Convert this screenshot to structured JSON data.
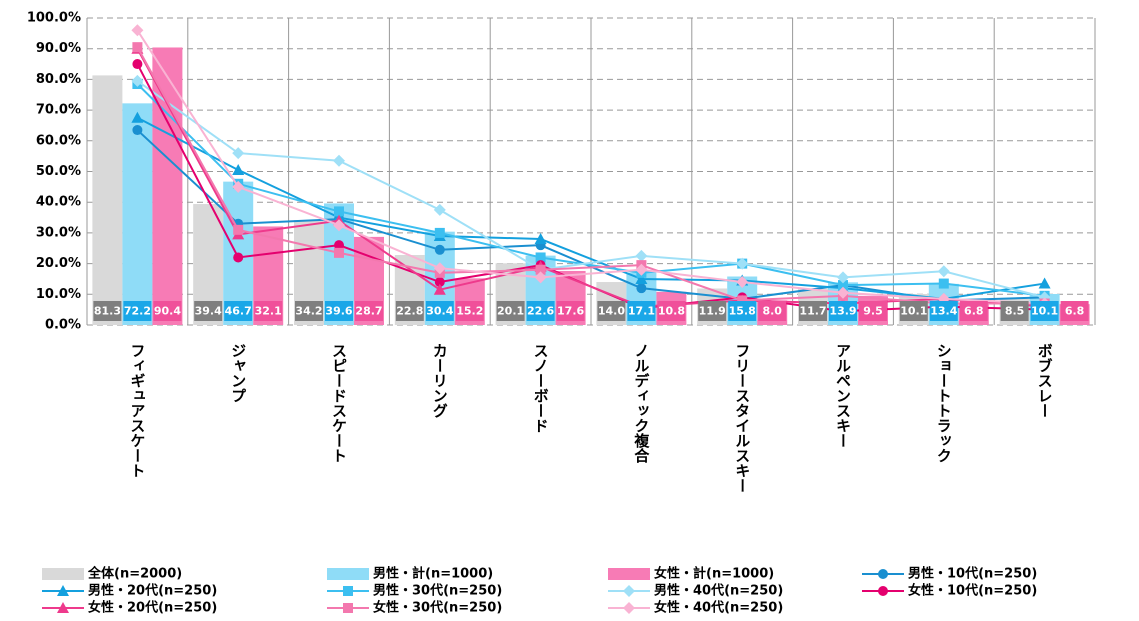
{
  "chart_data": {
    "type": "combo",
    "categories": [
      "フィギュアスケート",
      "ジャンプ",
      "スピードスケート",
      "カーリング",
      "スノーボード",
      "ノルディック複合",
      "フリースタイルスキー",
      "アルペンスキー",
      "ショートトラック",
      "ボブスレー"
    ],
    "ylim": [
      0,
      100
    ],
    "yticks": [
      {
        "value": 0,
        "label": "0.0%"
      },
      {
        "value": 10,
        "label": "10.0%"
      },
      {
        "value": 20,
        "label": "20.0%"
      },
      {
        "value": 30,
        "label": "30.0%"
      },
      {
        "value": 40,
        "label": "40.0%"
      },
      {
        "value": 50,
        "label": "50.0%"
      },
      {
        "value": 60,
        "label": "60.0%"
      },
      {
        "value": 70,
        "label": "70.0%"
      },
      {
        "value": 80,
        "label": "80.0%"
      },
      {
        "value": 90,
        "label": "90.0%"
      },
      {
        "value": 100,
        "label": "100.0%"
      }
    ],
    "grid": true,
    "series": [
      {
        "name": "全体(n=2000)",
        "kind": "bar",
        "color": "#d9d9d9",
        "label_color": "#7f7f7f",
        "values": [
          81.3,
          39.4,
          34.2,
          22.8,
          20.1,
          14.0,
          11.9,
          11.7,
          10.1,
          8.5
        ],
        "value_labels": [
          "81.3",
          "39.4",
          "34.2",
          "22.8",
          "20.1",
          "14.0",
          "11.9",
          "11.7",
          "10.1",
          "8.5"
        ]
      },
      {
        "name": "男性・計(n=1000)",
        "kind": "bar",
        "color": "#8fdcf7",
        "label_color": "#1aa7e8",
        "values": [
          72.2,
          46.7,
          39.6,
          30.4,
          22.6,
          17.1,
          15.8,
          13.9,
          13.4,
          10.1
        ],
        "value_labels": [
          "72.2",
          "46.7",
          "39.6",
          "30.4",
          "22.6",
          "17.1",
          "15.8",
          "13.9",
          "13.4",
          "10.1"
        ]
      },
      {
        "name": "女性・計(n=1000)",
        "kind": "bar",
        "color": "#f77bb5",
        "label_color": "#f0509a",
        "values": [
          90.4,
          32.1,
          28.7,
          15.2,
          17.6,
          10.8,
          8.0,
          9.5,
          6.8,
          6.8
        ],
        "value_labels": [
          "90.4",
          "32.1",
          "28.7",
          "15.2",
          "17.6",
          "10.8",
          "8.0",
          "9.5",
          "6.8",
          "6.8"
        ]
      },
      {
        "name": "男性・10代(n=250)",
        "kind": "line",
        "marker": "circle",
        "color": "#1a8fd0",
        "values": [
          63.5,
          33,
          34.5,
          24.5,
          26,
          12,
          8.5,
          13,
          8,
          9
        ]
      },
      {
        "name": "男性・20代(n=250)",
        "kind": "line",
        "marker": "triangle",
        "color": "#14a0de",
        "values": [
          67.5,
          50.5,
          35,
          29,
          28,
          15,
          14.5,
          12,
          8.5,
          13.5
        ]
      },
      {
        "name": "男性・30代(n=250)",
        "kind": "line",
        "marker": "square",
        "color": "#3cbff0",
        "values": [
          78.5,
          46,
          37,
          30,
          22,
          17,
          20,
          13,
          13.5,
          9.5
        ]
      },
      {
        "name": "男性・40代(n=250)",
        "kind": "line",
        "marker": "diamond",
        "color": "#9fe0f7",
        "values": [
          79.5,
          56,
          53.5,
          37.5,
          18,
          22.5,
          20,
          15.5,
          17.5,
          9
        ]
      },
      {
        "name": "女性・10代(n=250)",
        "kind": "line",
        "marker": "circle",
        "color": "#e4006e",
        "values": [
          85,
          22,
          26,
          14,
          19.5,
          5.5,
          9,
          4.5,
          6,
          5
        ]
      },
      {
        "name": "女性・20代(n=250)",
        "kind": "line",
        "marker": "triangle",
        "color": "#ee3a8c",
        "values": [
          90,
          29.5,
          34,
          11.5,
          19,
          6,
          8,
          7,
          8.5,
          6
        ]
      },
      {
        "name": "女性・30代(n=250)",
        "kind": "line",
        "marker": "square",
        "color": "#f378ae",
        "values": [
          90.5,
          31,
          23.5,
          17,
          18,
          19.5,
          8,
          9.5,
          7,
          7
        ]
      },
      {
        "name": "女性・40代(n=250)",
        "kind": "line",
        "marker": "diamond",
        "color": "#f9b3d3",
        "values": [
          96,
          45,
          32.5,
          18.5,
          15.5,
          18,
          14,
          10.5,
          8.5,
          7
        ]
      }
    ]
  }
}
